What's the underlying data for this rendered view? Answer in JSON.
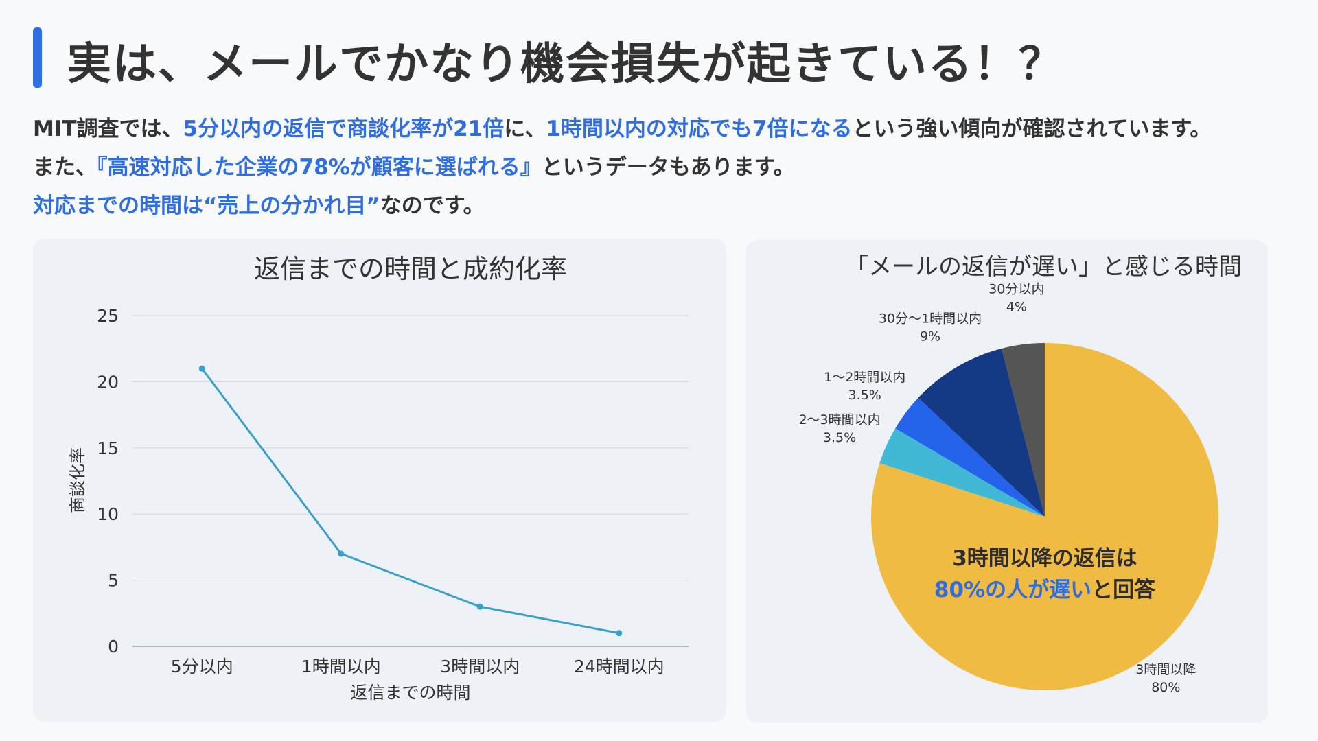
{
  "header": {
    "title": "実は、メールでかなり機会損失が起きている！？"
  },
  "intro": {
    "line1": {
      "a": "MIT調査では、",
      "b": "5分以内の返信で商談化率が21倍",
      "c": "に、",
      "d": "1時間以内の対応でも7倍になる",
      "e": "という強い傾向が確認されています。"
    },
    "line2": {
      "a": "また、",
      "b": "『高速対応した企業の78%が顧客に選ばれる』",
      "c": "というデータもあります。"
    },
    "line3": {
      "a": "対応までの時間は“売上の分かれ目”",
      "b": "なのです。"
    }
  },
  "chart_data": [
    {
      "type": "line",
      "title": "返信までの時間と成約化率",
      "xlabel": "返信までの時間",
      "ylabel": "商談化率",
      "categories": [
        "5分以内",
        "1時間以内",
        "3時間以内",
        "24時間以内"
      ],
      "values": [
        21,
        7,
        3,
        1
      ],
      "ylim": [
        0,
        25
      ],
      "yticks": [
        "0",
        "5",
        "10",
        "15",
        "20",
        "25"
      ],
      "grid": true,
      "color": "#3a9fc9"
    },
    {
      "type": "pie",
      "title": "「メールの返信が遅い」と感じる時間",
      "slices": [
        {
          "label": "3時間以降",
          "value": 80,
          "value_label": "80%",
          "color": "#f0bb43"
        },
        {
          "label": "2〜3時間以内",
          "value": 3.5,
          "value_label": "3.5%",
          "color": "#41b8d6"
        },
        {
          "label": "1〜2時間以内",
          "value": 3.5,
          "value_label": "3.5%",
          "color": "#2563eb"
        },
        {
          "label": "30分〜1時間以内",
          "value": 9,
          "value_label": "9%",
          "color": "#143a85"
        },
        {
          "label": "30分以内",
          "value": 4,
          "value_label": "4%",
          "color": "#555555"
        }
      ],
      "annotation_line1": "3時間以降の返信は",
      "annotation_line2_highlight": "80%の人が遅い",
      "annotation_line2_rest": "と回答",
      "annotation_highlight_color": "#2f6ee0"
    }
  ]
}
